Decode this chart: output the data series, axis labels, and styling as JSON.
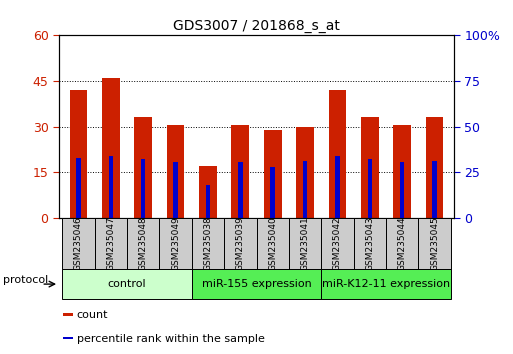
{
  "title": "GDS3007 / 201868_s_at",
  "samples": [
    "GSM235046",
    "GSM235047",
    "GSM235048",
    "GSM235049",
    "GSM235038",
    "GSM235039",
    "GSM235040",
    "GSM235041",
    "GSM235042",
    "GSM235043",
    "GSM235044",
    "GSM235045"
  ],
  "count_values": [
    42,
    46,
    33,
    30.5,
    17,
    30.5,
    29,
    30,
    42,
    33,
    30.5,
    33
  ],
  "percentile_values": [
    33,
    34,
    32,
    30.5,
    18,
    30.5,
    28,
    31,
    34,
    32,
    30.5,
    31
  ],
  "left_ylim": [
    0,
    60
  ],
  "right_ylim": [
    0,
    100
  ],
  "left_yticks": [
    0,
    15,
    30,
    45,
    60
  ],
  "right_yticks": [
    0,
    25,
    50,
    75,
    100
  ],
  "right_yticklabels": [
    "0",
    "25",
    "50",
    "75",
    "100%"
  ],
  "bar_color": "#CC2000",
  "percentile_color": "#0000CC",
  "grid_color": "#000000",
  "groups": [
    {
      "label": "control",
      "start": 0,
      "end": 4,
      "color": "#CCFFCC"
    },
    {
      "label": "miR-155 expression",
      "start": 4,
      "end": 8,
      "color": "#55EE55"
    },
    {
      "label": "miR-K12-11 expression",
      "start": 8,
      "end": 12,
      "color": "#55EE55"
    }
  ],
  "protocol_label": "protocol",
  "legend_items": [
    {
      "label": "count",
      "color": "#CC2000"
    },
    {
      "label": "percentile rank within the sample",
      "color": "#0000CC"
    }
  ],
  "bar_width": 0.55,
  "figsize": [
    5.13,
    3.54
  ],
  "dpi": 100
}
